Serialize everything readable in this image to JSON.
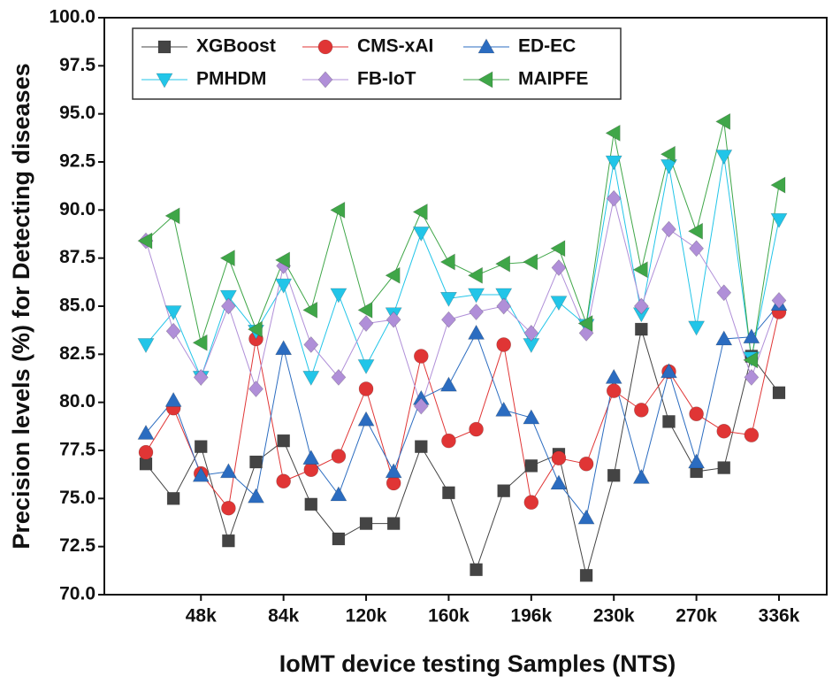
{
  "chart_data": {
    "type": "line",
    "xlabel": "IoMT device testing Samples (NTS)",
    "ylabel": "Precision levels (%) for Detecting diseases",
    "categories": [
      null,
      null,
      "48k",
      null,
      null,
      "84k",
      null,
      null,
      "120k",
      null,
      null,
      "160k",
      null,
      null,
      "196k",
      null,
      null,
      "230k",
      null,
      null,
      "270k",
      null,
      null,
      "336k"
    ],
    "ylim": [
      70,
      100
    ],
    "yticks": [
      {
        "value": 70,
        "label": "70.0"
      },
      72.5,
      {
        "value": 75,
        "label": "75.0"
      },
      77.5,
      {
        "value": 80,
        "label": "80.0"
      },
      82.5,
      {
        "value": 85,
        "label": "85.0"
      },
      87.5,
      {
        "value": 90,
        "label": "90.0"
      },
      92.5,
      {
        "value": 95,
        "label": "95.0"
      },
      97.5,
      {
        "value": 100,
        "label": "100.0"
      }
    ],
    "series": [
      {
        "name": "XGBoost",
        "color": "#444444",
        "marker": "square",
        "values": [
          76.8,
          75.0,
          77.7,
          72.8,
          76.9,
          78.0,
          74.7,
          72.9,
          73.7,
          73.7,
          77.7,
          75.3,
          71.3,
          75.4,
          76.7,
          77.3,
          71.0,
          76.2,
          83.8,
          79.0,
          76.4,
          76.6,
          82.4,
          80.5
        ]
      },
      {
        "name": "CMS-xAI",
        "color": "#e03535",
        "marker": "circle",
        "values": [
          77.4,
          79.7,
          76.3,
          74.5,
          83.3,
          75.9,
          76.5,
          77.2,
          80.7,
          75.8,
          82.4,
          78.0,
          78.6,
          83.0,
          74.8,
          77.1,
          76.8,
          80.6,
          79.6,
          81.6,
          79.4,
          78.5,
          78.3,
          84.7
        ]
      },
      {
        "name": "ED-EC",
        "color": "#2b6cc0",
        "marker": "triangle-up",
        "values": [
          78.4,
          80.1,
          76.2,
          76.4,
          75.1,
          82.8,
          77.1,
          75.2,
          79.1,
          76.4,
          80.2,
          80.9,
          83.6,
          79.6,
          79.2,
          75.8,
          74.0,
          81.3,
          76.1,
          81.6,
          76.9,
          83.3,
          83.4,
          85.1
        ]
      },
      {
        "name": "PMHDM",
        "color": "#22c5e8",
        "marker": "triangle-down",
        "values": [
          83.0,
          84.7,
          81.3,
          85.5,
          83.7,
          86.1,
          81.3,
          85.6,
          81.9,
          84.6,
          88.8,
          85.4,
          85.6,
          85.6,
          83.0,
          85.2,
          84.0,
          92.5,
          84.6,
          92.3,
          83.9,
          92.8,
          82.3,
          89.5
        ]
      },
      {
        "name": "FB-IoT",
        "color": "#b08fd8",
        "marker": "diamond",
        "values": [
          88.4,
          83.7,
          81.3,
          85.0,
          80.7,
          87.1,
          83.0,
          81.3,
          84.1,
          84.3,
          79.8,
          84.3,
          84.7,
          85.0,
          83.6,
          87.0,
          83.6,
          90.6,
          85.0,
          89.0,
          88.0,
          85.7,
          81.3,
          85.3
        ]
      },
      {
        "name": "MAIPFE",
        "color": "#3fa648",
        "marker": "triangle-left",
        "values": [
          88.4,
          89.7,
          83.1,
          87.5,
          83.8,
          87.4,
          84.8,
          90.0,
          84.8,
          86.6,
          89.9,
          87.3,
          86.6,
          87.2,
          87.3,
          88.0,
          84.1,
          94.0,
          86.9,
          92.9,
          88.9,
          94.6,
          82.2,
          91.3
        ]
      }
    ]
  }
}
